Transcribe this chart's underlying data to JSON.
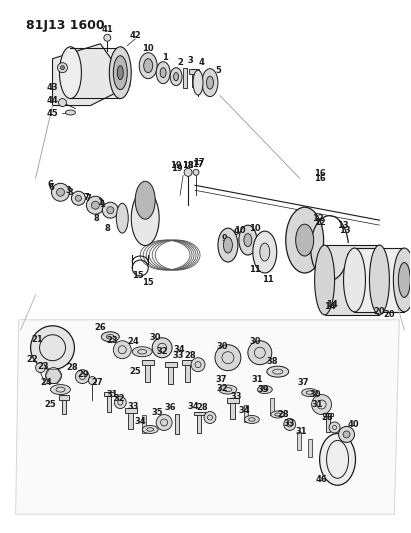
{
  "title": "81J13 1600",
  "bg_color": "#ffffff",
  "fig_width": 4.11,
  "fig_height": 5.33,
  "dpi": 100,
  "title_fontsize": 9,
  "title_fontweight": "bold",
  "line_color": "#1a1a1a",
  "gray_fill": "#d8d8d8",
  "dark_fill": "#888888",
  "mid_fill": "#b8b8b8",
  "light_fill": "#eeeeee"
}
